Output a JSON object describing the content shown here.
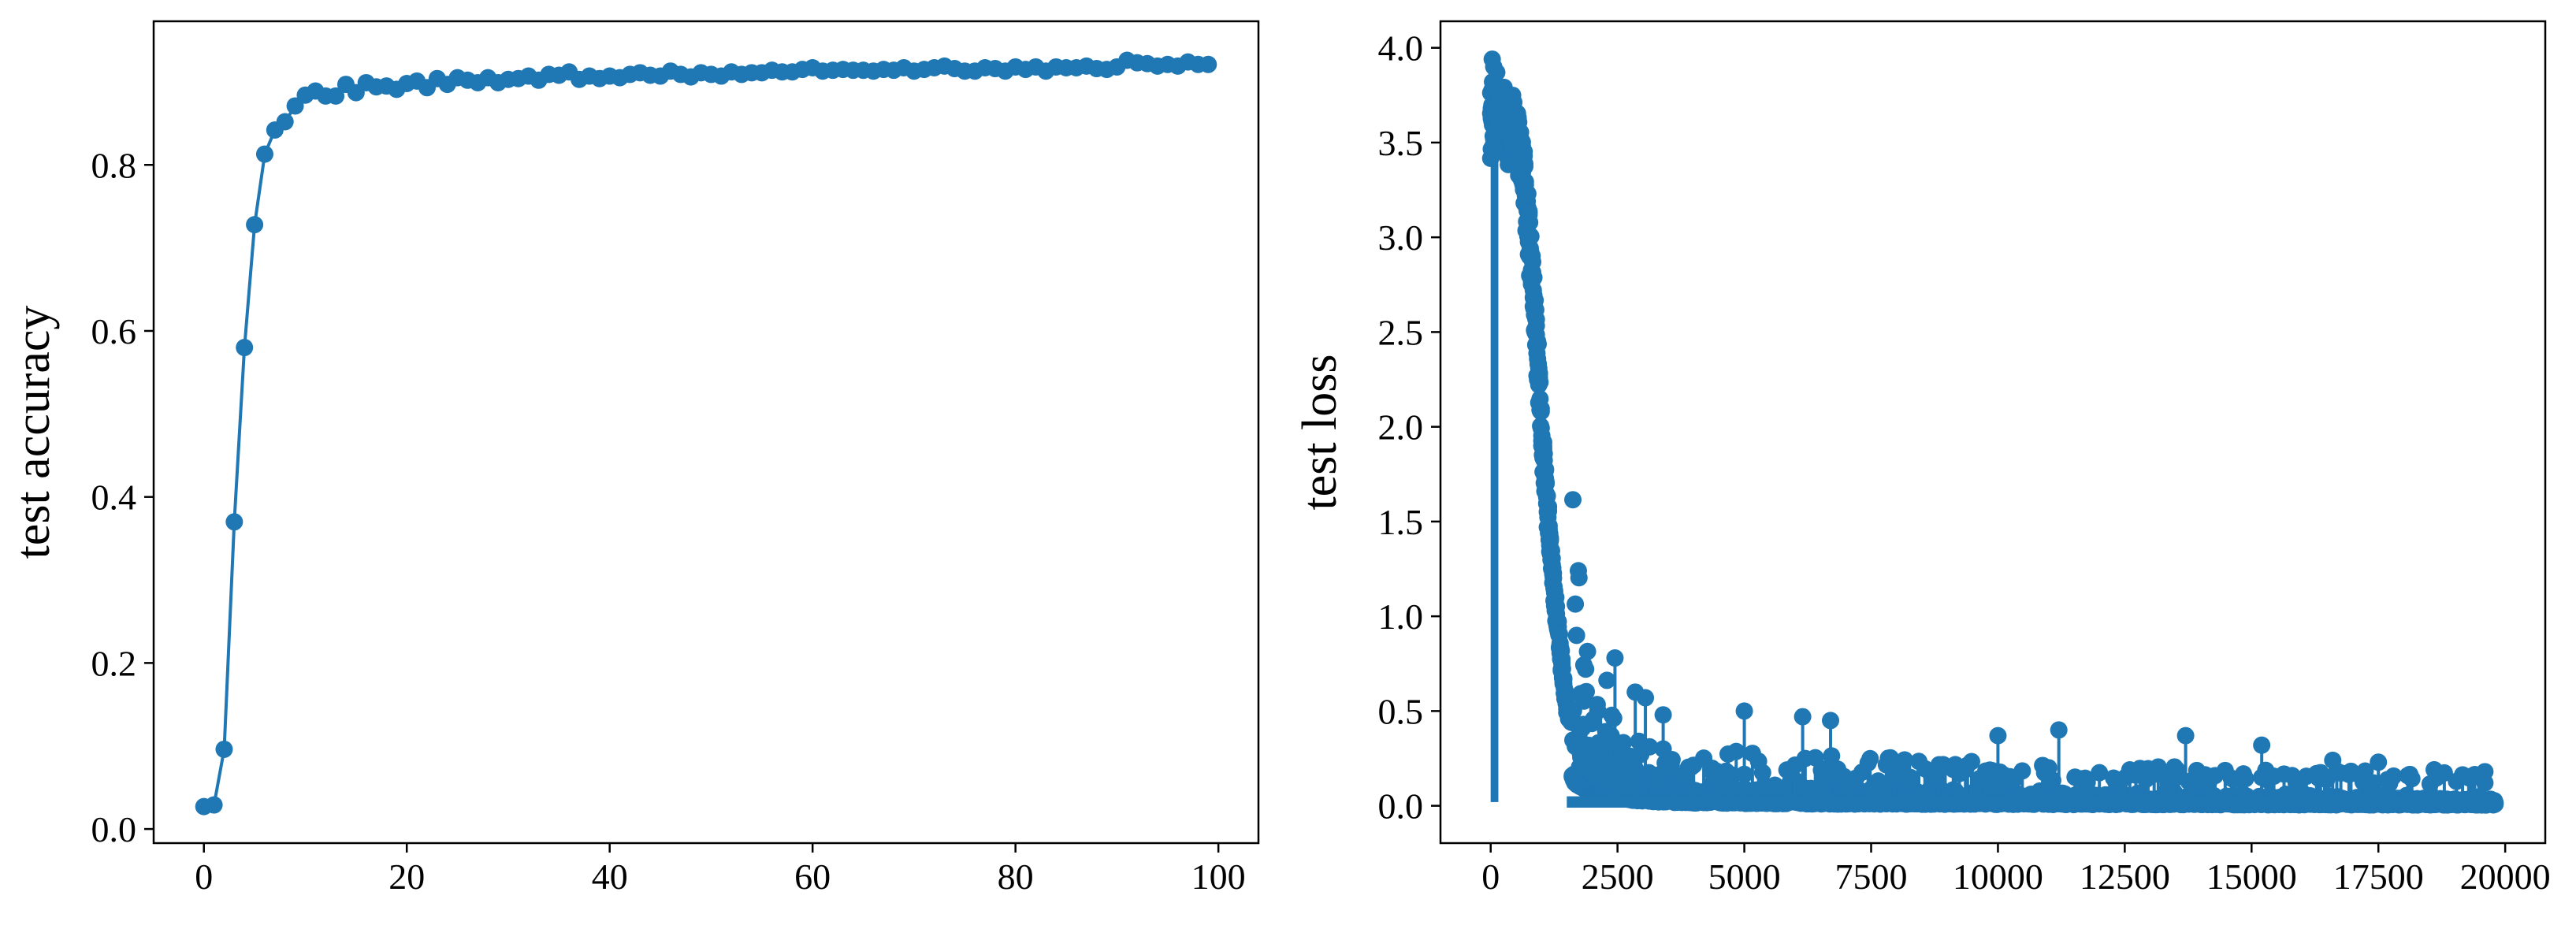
{
  "colors": {
    "series": "#1f77b4",
    "axes": "#000000",
    "background": "#ffffff"
  },
  "chart_data": [
    {
      "type": "line",
      "title": "",
      "xlabel": "",
      "ylabel": "test accuracy",
      "xlim": [
        -4.95,
        103.95
      ],
      "ylim": [
        -0.017,
        0.973
      ],
      "xticks": [
        0,
        20,
        40,
        60,
        80,
        100
      ],
      "xtick_labels": [
        "0",
        "20",
        "40",
        "60",
        "80",
        "100"
      ],
      "yticks": [
        0.0,
        0.2,
        0.4,
        0.6,
        0.8
      ],
      "ytick_labels": [
        "0.0",
        "0.2",
        "0.4",
        "0.6",
        "0.8"
      ],
      "grid": false,
      "markers": true,
      "series": [
        {
          "x": [
            0,
            1,
            2,
            3,
            4,
            5,
            6,
            7,
            8,
            9,
            10,
            11,
            12,
            13,
            14,
            15,
            16,
            17,
            18,
            19,
            20,
            21,
            22,
            23,
            24,
            25,
            26,
            27,
            28,
            29,
            30,
            31,
            32,
            33,
            34,
            35,
            36,
            37,
            38,
            39,
            40,
            41,
            42,
            43,
            44,
            45,
            46,
            47,
            48,
            49,
            50,
            51,
            52,
            53,
            54,
            55,
            56,
            57,
            58,
            59,
            60,
            61,
            62,
            63,
            64,
            65,
            66,
            67,
            68,
            69,
            70,
            71,
            72,
            73,
            74,
            75,
            76,
            77,
            78,
            79,
            80,
            81,
            82,
            83,
            84,
            85,
            86,
            87,
            88,
            89,
            90,
            91,
            92,
            93,
            94,
            95,
            96,
            97,
            98,
            99
          ],
          "values": [
            0.027,
            0.029,
            0.096,
            0.37,
            0.58,
            0.728,
            0.813,
            0.842,
            0.852,
            0.871,
            0.884,
            0.889,
            0.883,
            0.883,
            0.897,
            0.887,
            0.899,
            0.894,
            0.895,
            0.891,
            0.898,
            0.901,
            0.893,
            0.904,
            0.897,
            0.905,
            0.902,
            0.899,
            0.905,
            0.899,
            0.903,
            0.904,
            0.907,
            0.902,
            0.909,
            0.908,
            0.912,
            0.903,
            0.907,
            0.904,
            0.907,
            0.905,
            0.909,
            0.911,
            0.908,
            0.907,
            0.913,
            0.909,
            0.906,
            0.911,
            0.909,
            0.907,
            0.912,
            0.909,
            0.911,
            0.911,
            0.914,
            0.912,
            0.912,
            0.915,
            0.917,
            0.913,
            0.914,
            0.915,
            0.914,
            0.914,
            0.913,
            0.915,
            0.914,
            0.917,
            0.913,
            0.915,
            0.917,
            0.919,
            0.916,
            0.913,
            0.913,
            0.917,
            0.916,
            0.913,
            0.918,
            0.915,
            0.918,
            0.913,
            0.918,
            0.917,
            0.917,
            0.919,
            0.916,
            0.915,
            0.918,
            0.926,
            0.923,
            0.922,
            0.919,
            0.921,
            0.919,
            0.924,
            0.921,
            0.921
          ]
        }
      ]
    },
    {
      "type": "scatter",
      "title": "",
      "xlabel": "",
      "ylabel": "test loss",
      "xlim": [
        -990,
        20790
      ],
      "ylim": [
        -0.197,
        4.14
      ],
      "xticks": [
        0,
        2500,
        5000,
        7500,
        10000,
        12500,
        15000,
        17500,
        20000
      ],
      "xtick_labels": [
        "0",
        "2500",
        "5000",
        "7500",
        "10000",
        "12500",
        "15000",
        "17500",
        "20000"
      ],
      "yticks": [
        0.0,
        0.5,
        1.0,
        1.5,
        2.0,
        2.5,
        3.0,
        3.5,
        4.0
      ],
      "ytick_labels": [
        "0.0",
        "0.5",
        "1.0",
        "1.5",
        "2.0",
        "2.5",
        "3.0",
        "3.5",
        "4.0"
      ],
      "grid": false,
      "markers": true,
      "points": 19800,
      "envelope": {
        "x": [
          0,
          100,
          300,
          500,
          600,
          700,
          800,
          900,
          1000,
          1100,
          1200,
          1300,
          1400,
          1500,
          1700,
          2000,
          2500,
          3000,
          3500,
          4000,
          5000,
          6000,
          7000,
          8000,
          9000,
          10000,
          12000,
          14000,
          16000,
          18000,
          19800
        ],
        "values": [
          3.82,
          3.8,
          3.78,
          3.72,
          3.6,
          3.35,
          3.0,
          2.6,
          2.1,
          1.7,
          1.35,
          1.05,
          0.78,
          0.55,
          0.36,
          0.22,
          0.12,
          0.08,
          0.06,
          0.05,
          0.04,
          0.035,
          0.03,
          0.028,
          0.026,
          0.024,
          0.02,
          0.018,
          0.016,
          0.014,
          0.012
        ]
      },
      "outliers": {
        "x": [
          30,
          60,
          120,
          2450,
          2850,
          3050,
          3400,
          5000,
          6150,
          6700,
          10000,
          11200,
          13700,
          15200,
          16600,
          17500,
          18600,
          19600
        ],
        "values": [
          3.94,
          3.9,
          3.87,
          0.78,
          0.6,
          0.57,
          0.48,
          0.5,
          0.47,
          0.45,
          0.37,
          0.4,
          0.37,
          0.32,
          0.24,
          0.23,
          0.19,
          0.18
        ]
      }
    }
  ]
}
